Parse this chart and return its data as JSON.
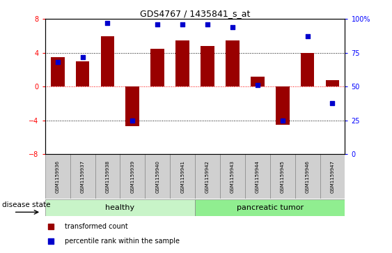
{
  "title": "GDS4767 / 1435841_s_at",
  "samples": [
    "GSM1159936",
    "GSM1159937",
    "GSM1159938",
    "GSM1159939",
    "GSM1159940",
    "GSM1159941",
    "GSM1159942",
    "GSM1159943",
    "GSM1159944",
    "GSM1159945",
    "GSM1159946",
    "GSM1159947"
  ],
  "bar_values": [
    3.5,
    3.0,
    6.0,
    -4.7,
    4.5,
    5.5,
    4.8,
    5.5,
    1.2,
    -4.5,
    4.0,
    0.8
  ],
  "percentile_values": [
    68,
    72,
    97,
    25,
    96,
    96,
    96,
    94,
    51,
    25,
    87,
    38
  ],
  "bar_color": "#990000",
  "dot_color": "#0000cc",
  "ylim": [
    -8,
    8
  ],
  "y2lim": [
    0,
    100
  ],
  "yticks": [
    -8,
    -4,
    0,
    4,
    8
  ],
  "y2ticks": [
    0,
    25,
    50,
    75,
    100
  ],
  "y2ticklabels": [
    "0",
    "25",
    "50",
    "75",
    "100%"
  ],
  "healthy_color": "#c8f4c8",
  "tumor_color": "#90ee90",
  "label_bg_color": "#d0d0d0",
  "legend_bar_label": "transformed count",
  "legend_dot_label": "percentile rank within the sample",
  "xlabel_disease": "disease state",
  "background_color": "#ffffff",
  "n_healthy": 6,
  "n_tumor": 6
}
